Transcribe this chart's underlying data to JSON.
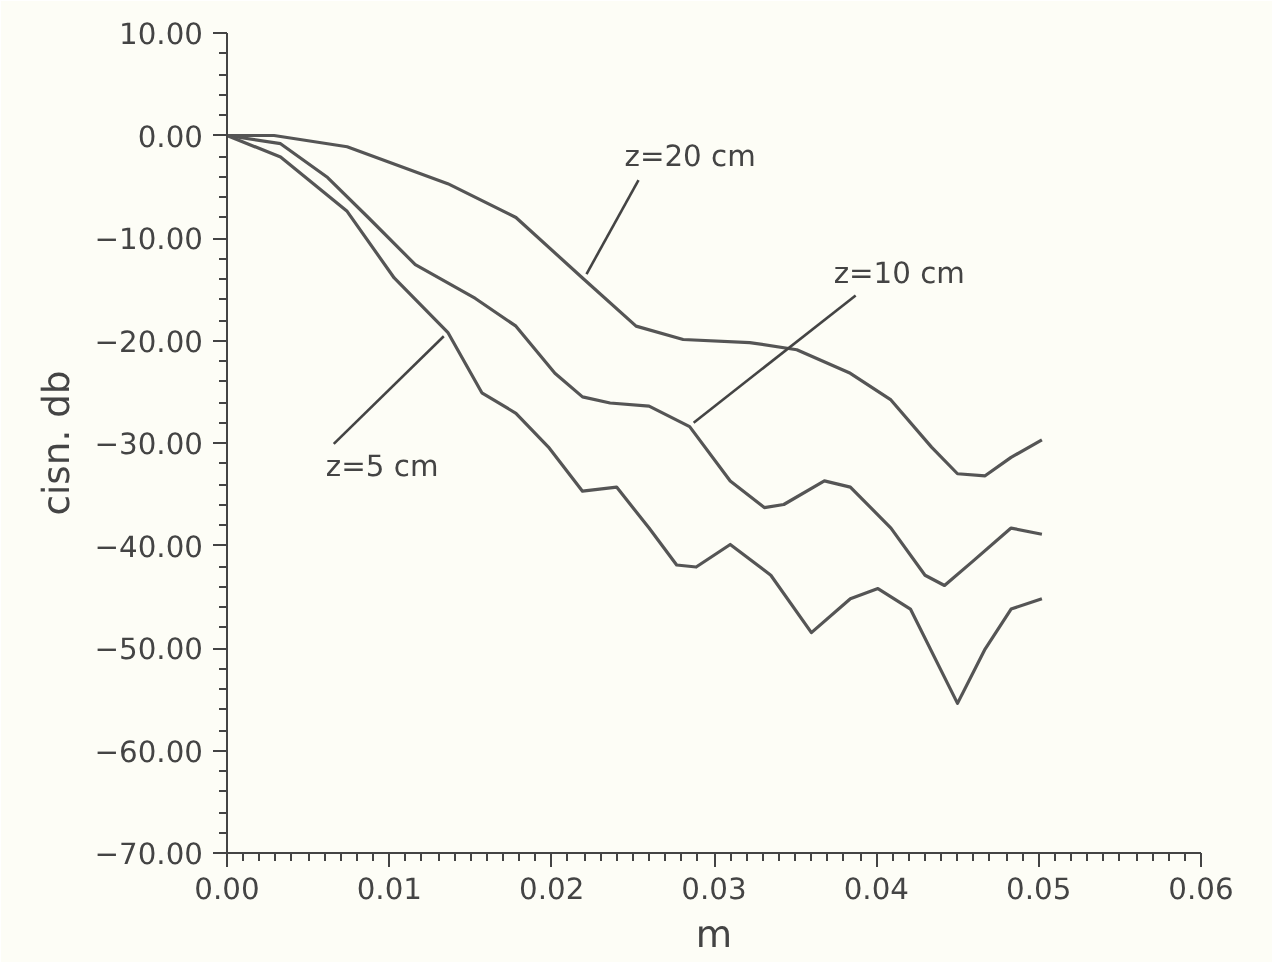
{
  "chart_data": {
    "type": "line",
    "xlabel": "m",
    "ylabel": "cisn. db",
    "xlim": [
      0,
      0.06
    ],
    "ylim": [
      -70,
      10
    ],
    "xticks": [
      {
        "value": 0,
        "label": "0.00"
      },
      {
        "value": 0.01,
        "label": "0.01"
      },
      {
        "value": 0.02,
        "label": "0.02"
      },
      {
        "value": 0.03,
        "label": "0.03"
      },
      {
        "value": 0.04,
        "label": "0.04"
      },
      {
        "value": 0.05,
        "label": "0.05"
      },
      {
        "value": 0.06,
        "label": "0.06"
      }
    ],
    "yticks": [
      {
        "value": 10,
        "label": "10.00"
      },
      {
        "value": 0,
        "label": "0.00"
      },
      {
        "value": -10,
        "label": "−10.00"
      },
      {
        "value": -20,
        "label": "−20.00"
      },
      {
        "value": -30,
        "label": "−30.00"
      },
      {
        "value": -40,
        "label": "−40.00"
      },
      {
        "value": -50,
        "label": "−50.00"
      },
      {
        "value": -60,
        "label": "−60.00"
      },
      {
        "value": -70,
        "label": "−70.00"
      }
    ],
    "grid": false,
    "line_style": "solid",
    "marker": "none",
    "series": [
      {
        "color": "#555555",
        "x": [
          0,
          0.0029,
          0.0074,
          0.0136,
          0.0178,
          0.0219,
          0.0252,
          0.0281,
          0.0322,
          0.0351,
          0.0384,
          0.0409,
          0.0434,
          0.045,
          0.0467,
          0.0483,
          0.0502
        ],
        "values": [
          0,
          0,
          -1.1,
          -4.7,
          -8.0,
          -13.9,
          -18.6,
          -19.9,
          -20.2,
          -20.9,
          -23.2,
          -25.8,
          -30.4,
          -33.0,
          -33.2,
          -31.4,
          -29.7
        ]
      },
      {
        "color": "#555555",
        "x": [
          0,
          0.0033,
          0.0062,
          0.0087,
          0.0116,
          0.0153,
          0.0178,
          0.0202,
          0.0219,
          0.0236,
          0.026,
          0.0285,
          0.031,
          0.0331,
          0.0343,
          0.0368,
          0.0384,
          0.0409,
          0.043,
          0.0442,
          0.0459,
          0.0483,
          0.0502
        ],
        "values": [
          0,
          -0.8,
          -4.1,
          -8.0,
          -12.6,
          -15.9,
          -18.6,
          -23.2,
          -25.5,
          -26.1,
          -26.4,
          -28.4,
          -33.7,
          -36.3,
          -36.0,
          -33.7,
          -34.3,
          -38.3,
          -42.9,
          -43.9,
          -41.6,
          -38.3,
          -38.9
        ]
      },
      {
        "color": "#555555",
        "x": [
          0,
          0.0033,
          0.0074,
          0.0103,
          0.0136,
          0.0157,
          0.0178,
          0.0198,
          0.0219,
          0.024,
          0.026,
          0.0277,
          0.0289,
          0.031,
          0.0335,
          0.036,
          0.0384,
          0.0401,
          0.0421,
          0.045,
          0.0467,
          0.0483,
          0.0502
        ],
        "values": [
          0,
          -2.1,
          -7.4,
          -13.9,
          -19.2,
          -25.1,
          -27.1,
          -30.4,
          -34.7,
          -34.3,
          -38.3,
          -41.9,
          -42.1,
          -39.9,
          -42.9,
          -48.5,
          -45.2,
          -44.2,
          -46.2,
          -55.4,
          -50.1,
          -46.2,
          -45.2
        ]
      }
    ],
    "annotations": [
      {
        "text": "z=20  cm",
        "x": 0.0219,
        "y": -13.9
      },
      {
        "text": "z=10  cm",
        "x": 0.0285,
        "y": -28.4
      },
      {
        "text": "z=5  cm",
        "x": 0.0136,
        "y": -19.2
      }
    ]
  }
}
